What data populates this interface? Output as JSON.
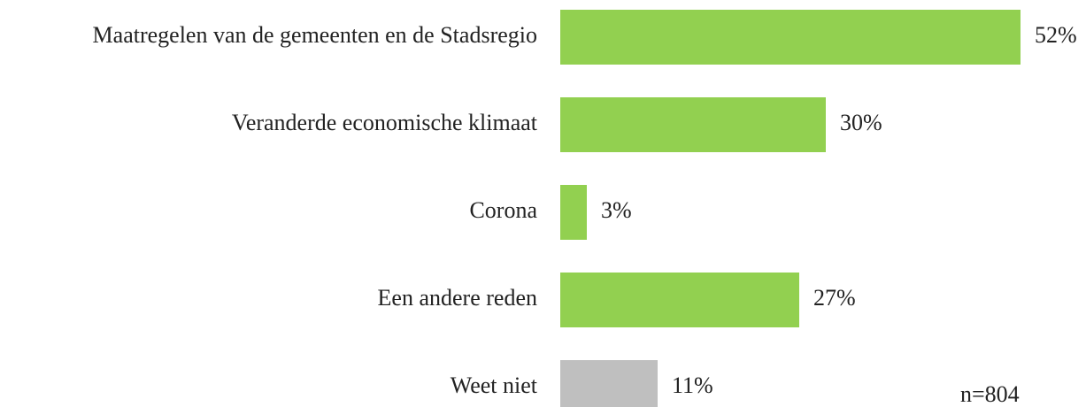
{
  "chart_data": {
    "type": "hbar",
    "categories": [
      "Maatregelen van de gemeenten en de Stadsregio",
      "Veranderde economische klimaat",
      "Corona",
      "Een andere reden",
      "Weet niet"
    ],
    "values": [
      52,
      30,
      3,
      27,
      11
    ],
    "value_labels": [
      "52%",
      "30%",
      "3%",
      "27%",
      "11%"
    ],
    "colors": [
      "#92d050",
      "#92d050",
      "#92d050",
      "#92d050",
      "#bfbfbf"
    ],
    "annotation": "n=804"
  }
}
